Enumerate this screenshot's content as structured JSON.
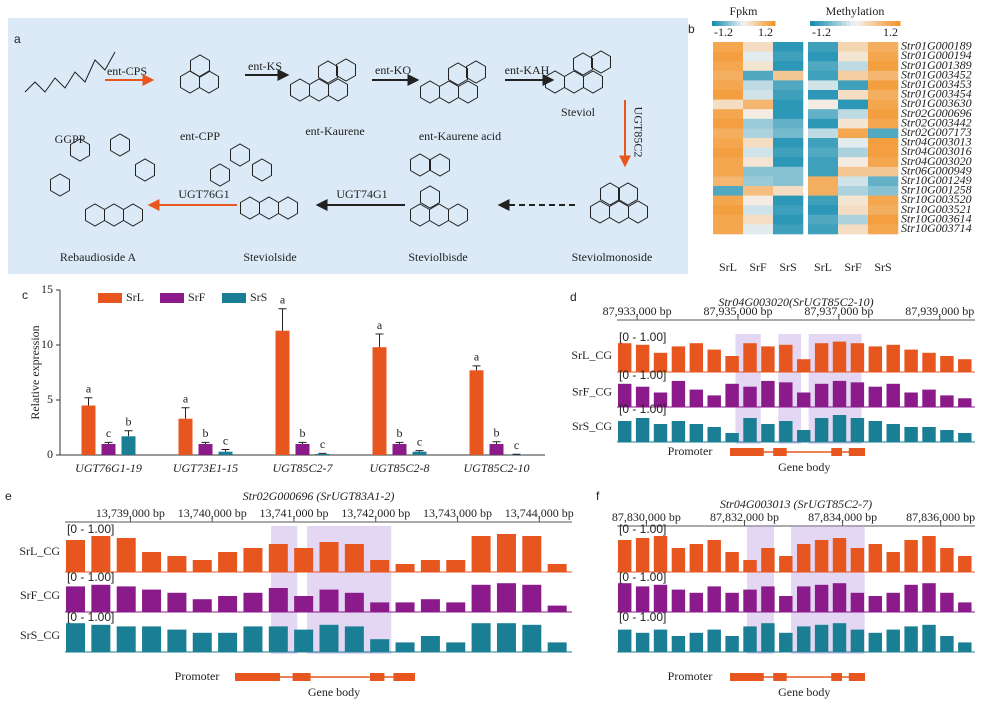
{
  "panel_a": {
    "label": "a",
    "compounds": [
      "GGPP",
      "ent-CPP",
      "ent-Kaurene",
      "ent-Kaurene acid",
      "Steviol",
      "Steviolmonoside",
      "Steviolbisde",
      "Steviolside",
      "Rebaudioside A"
    ],
    "enzymes": [
      {
        "name": "ent-CPS",
        "color": "#e8561f"
      },
      {
        "name": "ent-KS",
        "color": "#222222"
      },
      {
        "name": "ent-KO",
        "color": "#222222"
      },
      {
        "name": "ent-KAH",
        "color": "#222222"
      },
      {
        "name": "UGT85C2",
        "color": "#e8561f"
      },
      {
        "name": "UGT74G1",
        "color": "#222222"
      },
      {
        "name": "UGT76G1",
        "color": "#e8561f"
      }
    ]
  },
  "panel_b": {
    "label": "b",
    "legends": [
      {
        "title": "Fpkm",
        "min": -1.2,
        "max": 1.2
      },
      {
        "title": "Methylation",
        "min": -1.2,
        "max": 1.2
      }
    ],
    "colors": [
      "#1a8fb0",
      "#f4f4f4",
      "#f4972e"
    ],
    "columns": [
      "SrL",
      "SrF",
      "SrS",
      "SrL",
      "SrF",
      "SrS"
    ],
    "rows": [
      "Str01G000189",
      "Str01G000194",
      "Str01G001389",
      "Str01G003452",
      "Str01G003453",
      "Str01G003454",
      "Str01G003630",
      "Str02G000696",
      "Str02G003442",
      "Str02G007173",
      "Str04G003013",
      "Str04G003016",
      "Str04G003020",
      "Str06G000949",
      "Str10G001249",
      "Str10G001258",
      "Str10G003520",
      "Str10G003521",
      "Str10G003614",
      "Str10G003714"
    ],
    "values": [
      [
        1.0,
        0.3,
        -1.1,
        -1.0,
        0.4,
        0.9
      ],
      [
        1.1,
        -0.1,
        -1.0,
        -1.1,
        0.2,
        1.0
      ],
      [
        1.0,
        0.2,
        -1.1,
        -0.9,
        -0.3,
        1.1
      ],
      [
        0.9,
        -0.9,
        0.6,
        -1.0,
        0.5,
        0.8
      ],
      [
        1.0,
        -0.3,
        -0.9,
        -0.2,
        -1.0,
        1.1
      ],
      [
        1.1,
        -0.2,
        -1.0,
        -1.1,
        0.3,
        0.9
      ],
      [
        0.3,
        0.8,
        -1.1,
        0.1,
        -1.1,
        1.0
      ],
      [
        1.0,
        0.1,
        -1.1,
        -0.8,
        -0.3,
        1.1
      ],
      [
        1.1,
        -0.5,
        -0.8,
        -1.1,
        0.2,
        1.0
      ],
      [
        0.9,
        -0.4,
        -0.7,
        -0.3,
        1.0,
        -0.9
      ],
      [
        1.0,
        0.3,
        -1.1,
        -1.0,
        -0.1,
        1.1
      ],
      [
        1.1,
        -0.2,
        -1.0,
        -0.9,
        -0.4,
        1.1
      ],
      [
        1.0,
        0.2,
        -1.1,
        -1.0,
        0.1,
        1.0
      ],
      [
        1.0,
        -0.6,
        -0.6,
        -1.0,
        0.6,
        0.6
      ],
      [
        0.8,
        -0.5,
        -0.6,
        0.9,
        -0.2,
        -0.8
      ],
      [
        -0.9,
        0.7,
        0.3,
        0.9,
        -0.4,
        -0.6
      ],
      [
        1.0,
        0.1,
        -1.1,
        -1.0,
        0.2,
        1.0
      ],
      [
        1.1,
        -0.2,
        -1.0,
        -1.1,
        0.3,
        0.9
      ],
      [
        1.0,
        0.3,
        -1.1,
        -0.9,
        -0.4,
        1.1
      ],
      [
        1.0,
        -0.1,
        -1.0,
        -1.0,
        0.3,
        1.0
      ]
    ]
  },
  "chart_data": {
    "type": "bar",
    "label": "c",
    "y_label": "Relative expression",
    "categories": [
      "UGT76G1-19",
      "UGT73E1-15",
      "UGT85C2-7",
      "UGT85C2-8",
      "UGT85C2-10"
    ],
    "series": [
      {
        "name": "SrL",
        "color": "#e8561f",
        "values": [
          4.5,
          3.3,
          11.3,
          9.8,
          7.7
        ],
        "errors": [
          0.7,
          1.0,
          2.0,
          1.2,
          0.4
        ],
        "significance": [
          "a",
          "a",
          "a",
          "a",
          "a"
        ]
      },
      {
        "name": "SrF",
        "color": "#8b1a8b",
        "values": [
          1.0,
          1.0,
          1.0,
          1.0,
          1.0
        ],
        "errors": [
          0.15,
          0.15,
          0.15,
          0.15,
          0.2
        ],
        "significance": [
          "c",
          "b",
          "b",
          "b",
          "b"
        ]
      },
      {
        "name": "SrS",
        "color": "#1a7f94",
        "values": [
          1.7,
          0.3,
          0.1,
          0.3,
          0.05
        ],
        "errors": [
          0.5,
          0.2,
          0.05,
          0.1,
          0.02
        ],
        "significance": [
          "b",
          "c",
          "c",
          "c",
          "c"
        ]
      }
    ],
    "ylim": [
      0,
      15
    ],
    "yticks": [
      0,
      5,
      10,
      15
    ]
  },
  "panel_d": {
    "label": "d",
    "title": "Str04G003020(SrUGT85C2-10)",
    "range_label": "[0 - 1.00]",
    "ylim": [
      0,
      1
    ],
    "xlim": [
      87932600,
      87939700
    ],
    "xticks": [
      {
        "value": 87933000,
        "label": "87,933,000 bp"
      },
      {
        "value": 87935000,
        "label": "87,935,000 bp"
      },
      {
        "value": 87937000,
        "label": "87,937,000 bp"
      },
      {
        "value": 87939000,
        "label": "87,939,000 bp"
      }
    ],
    "bins": [
      87932600,
      87932955,
      87933310,
      87933665,
      87934020,
      87934375,
      87934730,
      87935085,
      87935440,
      87935795,
      87936150,
      87936505,
      87936860,
      87937215,
      87937570,
      87937925,
      87938280,
      87938635,
      87938990,
      87939345,
      87939700
    ],
    "tracks": [
      {
        "name": "SrL_CG",
        "color": "#e8561f",
        "values": [
          0.9,
          0.85,
          0.6,
          0.8,
          0.9,
          0.7,
          0.5,
          0.9,
          0.8,
          0.85,
          0.4,
          0.9,
          0.95,
          0.9,
          0.8,
          0.85,
          0.7,
          0.6,
          0.5,
          0.4
        ]
      },
      {
        "name": "SrF_CG",
        "color": "#8b1a8b",
        "values": [
          0.8,
          0.7,
          0.5,
          0.9,
          0.6,
          0.4,
          0.8,
          0.7,
          0.9,
          0.85,
          0.5,
          0.8,
          0.9,
          0.85,
          0.7,
          0.8,
          0.5,
          0.6,
          0.4,
          0.3
        ]
      },
      {
        "name": "SrS_CG",
        "color": "#1a7f94",
        "values": [
          0.7,
          0.8,
          0.6,
          0.7,
          0.6,
          0.5,
          0.3,
          0.8,
          0.6,
          0.7,
          0.4,
          0.8,
          0.9,
          0.8,
          0.7,
          0.6,
          0.5,
          0.5,
          0.4,
          0.3
        ]
      }
    ],
    "highlights": [
      [
        87934950,
        87935450
      ],
      [
        87935800,
        87936250
      ],
      [
        87936400,
        87937450
      ]
    ],
    "promoter_label": "Promoter",
    "gene_body_label": "Gene body"
  },
  "panel_e": {
    "label": "e",
    "title": "Str02G000696 (SrUGT83A1-2)",
    "range_label": "[0 - 1.00]",
    "ylim": [
      0,
      1
    ],
    "xlim": [
      13738200,
      13744400
    ],
    "xticks": [
      {
        "value": 13739000,
        "label": "13,739,000 bp"
      },
      {
        "value": 13740000,
        "label": "13,740,000 bp"
      },
      {
        "value": 13741000,
        "label": "13,741,000 bp"
      },
      {
        "value": 13742000,
        "label": "13,742,000 bp"
      },
      {
        "value": 13743000,
        "label": "13,743,000 bp"
      },
      {
        "value": 13744000,
        "label": "13,744,000 bp"
      }
    ],
    "bins": [
      13738200,
      13738510,
      13738820,
      13739130,
      13739440,
      13739750,
      13740060,
      13740370,
      13740680,
      13740990,
      13741300,
      13741610,
      13741920,
      13742230,
      13742540,
      13742850,
      13743160,
      13743470,
      13743780,
      13744090,
      13744400
    ],
    "tracks": [
      {
        "name": "SrL_CG",
        "color": "#e8561f",
        "values": [
          0.8,
          0.9,
          0.85,
          0.5,
          0.4,
          0.3,
          0.5,
          0.6,
          0.7,
          0.6,
          0.75,
          0.7,
          0.3,
          0.2,
          0.3,
          0.3,
          0.9,
          0.95,
          0.9,
          0.2
        ]
      },
      {
        "name": "SrF_CG",
        "color": "#8b1a8b",
        "values": [
          0.8,
          0.85,
          0.8,
          0.7,
          0.6,
          0.4,
          0.5,
          0.6,
          0.75,
          0.5,
          0.7,
          0.6,
          0.3,
          0.3,
          0.4,
          0.3,
          0.85,
          0.9,
          0.85,
          0.2
        ]
      },
      {
        "name": "SrS_CG",
        "color": "#1a7f94",
        "values": [
          0.9,
          0.85,
          0.8,
          0.8,
          0.7,
          0.6,
          0.6,
          0.8,
          0.8,
          0.7,
          0.85,
          0.8,
          0.4,
          0.3,
          0.5,
          0.3,
          0.9,
          0.9,
          0.85,
          0.3
        ]
      }
    ],
    "highlights": [
      [
        13740720,
        13741040
      ],
      [
        13741160,
        13742190
      ]
    ],
    "promoter_label": "Promoter",
    "gene_body_label": "Gene body"
  },
  "panel_f": {
    "label": "f",
    "title": "Str04G003013 (SrUGT85C2-7)",
    "range_label": "[0 - 1.00]",
    "ylim": [
      0,
      1
    ],
    "xlim": [
      87829400,
      87836700
    ],
    "xticks": [
      {
        "value": 87830000,
        "label": "87,830,000 bp"
      },
      {
        "value": 87832000,
        "label": "87,832,000 bp"
      },
      {
        "value": 87834000,
        "label": "87,834,000 bp"
      },
      {
        "value": 87836000,
        "label": "87,836,000 bp"
      }
    ],
    "bins": [
      87829400,
      87829765,
      87830130,
      87830495,
      87830860,
      87831225,
      87831590,
      87831955,
      87832320,
      87832685,
      87833050,
      87833415,
      87833780,
      87834145,
      87834510,
      87834875,
      87835240,
      87835605,
      87835970,
      87836335,
      87836700
    ],
    "tracks": [
      {
        "color": "#e8561f",
        "values": [
          0.8,
          0.85,
          0.9,
          0.6,
          0.7,
          0.8,
          0.5,
          0.3,
          0.6,
          0.4,
          0.7,
          0.8,
          0.85,
          0.6,
          0.7,
          0.5,
          0.8,
          0.9,
          0.6,
          0.4
        ]
      },
      {
        "color": "#8b1a8b",
        "values": [
          0.9,
          0.8,
          0.85,
          0.7,
          0.6,
          0.8,
          0.6,
          0.7,
          0.8,
          0.5,
          0.8,
          0.85,
          0.9,
          0.6,
          0.5,
          0.6,
          0.85,
          0.9,
          0.6,
          0.3
        ]
      },
      {
        "color": "#1a7f94",
        "values": [
          0.7,
          0.6,
          0.7,
          0.5,
          0.6,
          0.7,
          0.5,
          0.8,
          0.9,
          0.6,
          0.8,
          0.85,
          0.9,
          0.7,
          0.6,
          0.7,
          0.8,
          0.85,
          0.5,
          0.3
        ]
      }
    ],
    "highlights": [
      [
        87832050,
        87832600
      ],
      [
        87832950,
        87834450
      ]
    ],
    "promoter_label": "Promoter",
    "gene_body_label": "Gene body"
  }
}
